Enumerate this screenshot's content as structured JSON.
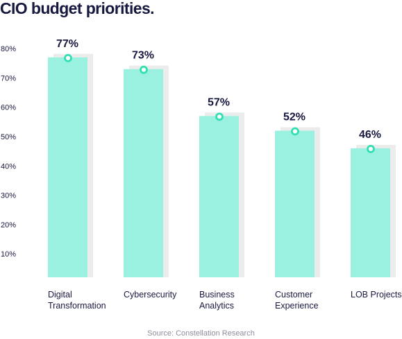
{
  "chart_data": {
    "type": "bar",
    "title": "CIO budget priorities.",
    "categories": [
      [
        "Digital",
        "Transformation"
      ],
      [
        "Cybersecurity"
      ],
      [
        "Business",
        "Analytics"
      ],
      [
        "Customer",
        "Experience"
      ],
      [
        "LOB Projects"
      ]
    ],
    "values": [
      77,
      73,
      57,
      52,
      46
    ],
    "data_labels": [
      "77%",
      "73%",
      "57%",
      "52%",
      "46%"
    ],
    "yticks": [
      "10%",
      "20%",
      "30%",
      "40%",
      "50%",
      "60%",
      "70%",
      "80%"
    ],
    "ylim": [
      2,
      80
    ],
    "xlabel": "",
    "ylabel": "",
    "grid": false,
    "legend": "none",
    "source": "Source: Constellation Research"
  },
  "colors": {
    "bar": "#9bf1df",
    "bar_shadow": "#ececec",
    "marker": "#2fe0b3",
    "text": "#17183f",
    "source": "#8d8d9a"
  }
}
